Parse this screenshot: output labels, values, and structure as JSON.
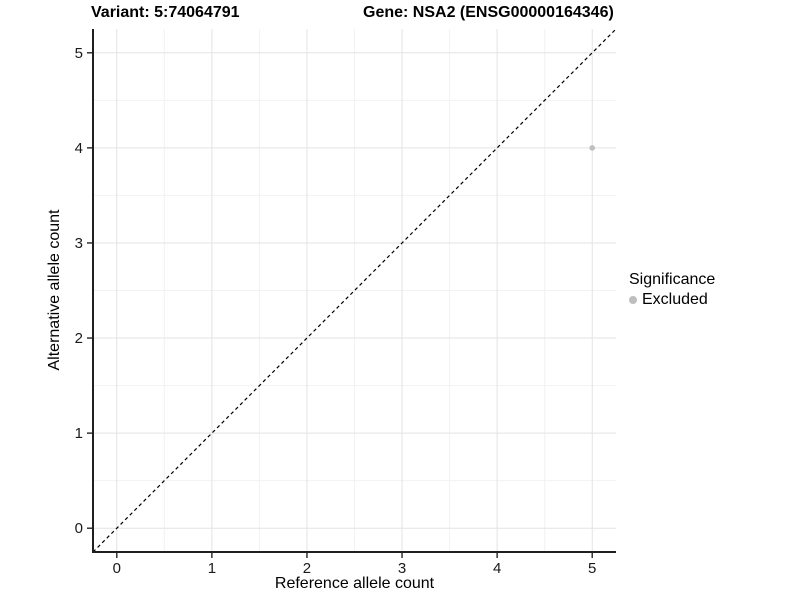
{
  "header": {
    "title_left": "Variant: 5:74064791",
    "title_right": "Gene: NSA2 (ENSG00000164346)"
  },
  "chart_data": {
    "type": "scatter",
    "title": "Variant: 5:74064791    Gene: NSA2 (ENSG00000164346)",
    "xlabel": "Reference allele count",
    "ylabel": "Alternative allele count",
    "xlim": [
      -0.25,
      5.25
    ],
    "ylim": [
      -0.25,
      5.25
    ],
    "xticks": [
      0,
      1,
      2,
      3,
      4,
      5
    ],
    "yticks": [
      0,
      1,
      2,
      3,
      4,
      5
    ],
    "grid": "major-and-minor",
    "points": [
      {
        "x": 5,
        "y": 4,
        "series": "Excluded"
      }
    ],
    "reference_line": {
      "kind": "identity y=x",
      "style": "dashed",
      "color": "#000000"
    },
    "legend": {
      "position": "right",
      "title": "Significance",
      "entries": [
        {
          "label": "Excluded",
          "color": "#bebebe"
        }
      ]
    }
  },
  "colors": {
    "background": "#ffffff",
    "grid_major": "#e3e3e3",
    "grid_minor": "#f2f2f2",
    "axis_line": "#1f1f1f",
    "tick_mark": "#333333",
    "tick_label": "#1a1a1a",
    "point": "#bebebe",
    "dashed_line": "#000000"
  }
}
